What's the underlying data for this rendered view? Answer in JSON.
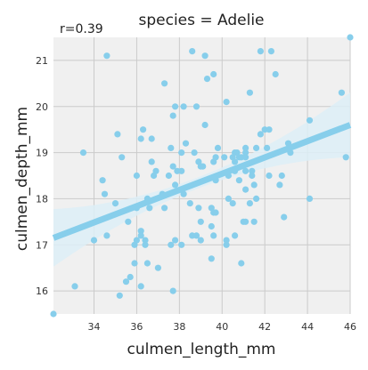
{
  "chart_data": {
    "type": "scatter",
    "title": "species = Adelie",
    "annotation": "r=0.39",
    "xlabel": "culmen_length_mm",
    "ylabel": "culmen_depth_mm",
    "xlim": [
      32.1,
      46.0
    ],
    "ylim": [
      15.5,
      21.5
    ],
    "xticks": [
      34,
      36,
      38,
      40,
      42,
      44,
      46
    ],
    "yticks": [
      16,
      17,
      18,
      19,
      20,
      21
    ],
    "grid": true,
    "colors": {
      "points": "#87CEEB",
      "regression": "#87CEEB",
      "band": "#DDEEF7",
      "background": "#F0F0F0",
      "grid": "#CBCBCB"
    },
    "regression": {
      "x": [
        32.1,
        46.0
      ],
      "y": [
        17.15,
        19.6
      ]
    },
    "points": [
      [
        32.1,
        15.5
      ],
      [
        33.1,
        16.1
      ],
      [
        33.5,
        19.0
      ],
      [
        34.0,
        17.1
      ],
      [
        34.4,
        18.4
      ],
      [
        34.5,
        18.1
      ],
      [
        34.6,
        17.2
      ],
      [
        34.6,
        21.1
      ],
      [
        35.0,
        17.9
      ],
      [
        35.1,
        19.4
      ],
      [
        35.2,
        15.9
      ],
      [
        35.3,
        18.9
      ],
      [
        35.5,
        16.2
      ],
      [
        35.6,
        17.5
      ],
      [
        35.7,
        16.3
      ],
      [
        35.9,
        16.6
      ],
      [
        35.9,
        17.0
      ],
      [
        36.0,
        17.1
      ],
      [
        36.0,
        17.8
      ],
      [
        36.0,
        18.5
      ],
      [
        36.2,
        16.1
      ],
      [
        36.2,
        17.3
      ],
      [
        36.2,
        17.2
      ],
      [
        36.2,
        19.3
      ],
      [
        36.3,
        19.5
      ],
      [
        36.4,
        17.1
      ],
      [
        36.4,
        17.0
      ],
      [
        36.5,
        16.6
      ],
      [
        36.5,
        18.0
      ],
      [
        36.6,
        17.8
      ],
      [
        36.7,
        18.8
      ],
      [
        36.7,
        19.3
      ],
      [
        36.8,
        18.5
      ],
      [
        36.9,
        18.6
      ],
      [
        37.0,
        16.5
      ],
      [
        37.2,
        18.1
      ],
      [
        37.3,
        17.8
      ],
      [
        37.3,
        20.5
      ],
      [
        37.5,
        18.5
      ],
      [
        37.6,
        17.0
      ],
      [
        37.6,
        19.1
      ],
      [
        37.7,
        16.0
      ],
      [
        37.7,
        18.7
      ],
      [
        37.7,
        19.8
      ],
      [
        37.8,
        17.1
      ],
      [
        37.8,
        18.3
      ],
      [
        37.8,
        20.0
      ],
      [
        37.9,
        18.6
      ],
      [
        38.1,
        17.0
      ],
      [
        38.1,
        18.6
      ],
      [
        38.1,
        19.0
      ],
      [
        38.2,
        18.1
      ],
      [
        38.2,
        20.0
      ],
      [
        38.3,
        19.2
      ],
      [
        38.5,
        17.9
      ],
      [
        38.6,
        17.2
      ],
      [
        38.6,
        21.2
      ],
      [
        38.7,
        19.0
      ],
      [
        38.8,
        17.2
      ],
      [
        38.8,
        20.0
      ],
      [
        38.9,
        17.8
      ],
      [
        38.9,
        18.8
      ],
      [
        39.0,
        17.1
      ],
      [
        39.0,
        17.5
      ],
      [
        39.0,
        18.7
      ],
      [
        39.1,
        18.7
      ],
      [
        39.2,
        19.6
      ],
      [
        39.2,
        21.1
      ],
      [
        39.3,
        20.6
      ],
      [
        39.5,
        16.7
      ],
      [
        39.5,
        17.4
      ],
      [
        39.5,
        17.8
      ],
      [
        39.6,
        17.2
      ],
      [
        39.6,
        17.7
      ],
      [
        39.6,
        18.8
      ],
      [
        39.6,
        20.7
      ],
      [
        39.7,
        17.7
      ],
      [
        39.7,
        18.4
      ],
      [
        39.7,
        18.9
      ],
      [
        39.8,
        19.1
      ],
      [
        40.1,
        18.9
      ],
      [
        40.2,
        17.0
      ],
      [
        40.2,
        17.1
      ],
      [
        40.2,
        20.1
      ],
      [
        40.3,
        18.0
      ],
      [
        40.3,
        18.5
      ],
      [
        40.5,
        17.9
      ],
      [
        40.5,
        18.9
      ],
      [
        40.6,
        17.2
      ],
      [
        40.6,
        18.6
      ],
      [
        40.6,
        18.8
      ],
      [
        40.6,
        19.0
      ],
      [
        40.7,
        19.0
      ],
      [
        40.8,
        18.4
      ],
      [
        40.8,
        18.9
      ],
      [
        40.9,
        16.6
      ],
      [
        40.9,
        18.9
      ],
      [
        41.0,
        17.5
      ],
      [
        41.1,
        17.5
      ],
      [
        41.1,
        18.2
      ],
      [
        41.1,
        18.6
      ],
      [
        41.1,
        18.9
      ],
      [
        41.1,
        19.0
      ],
      [
        41.1,
        19.1
      ],
      [
        41.3,
        17.9
      ],
      [
        41.3,
        20.3
      ],
      [
        41.4,
        18.6
      ],
      [
        41.4,
        18.5
      ],
      [
        41.5,
        17.5
      ],
      [
        41.5,
        18.3
      ],
      [
        41.6,
        18.0
      ],
      [
        41.6,
        19.1
      ],
      [
        41.8,
        19.4
      ],
      [
        41.8,
        21.2
      ],
      [
        42.0,
        19.5
      ],
      [
        42.1,
        19.1
      ],
      [
        42.2,
        18.5
      ],
      [
        42.2,
        19.5
      ],
      [
        42.3,
        21.2
      ],
      [
        42.5,
        20.7
      ],
      [
        42.7,
        18.3
      ],
      [
        42.8,
        18.5
      ],
      [
        42.9,
        17.6
      ],
      [
        43.1,
        19.2
      ],
      [
        43.2,
        19.0
      ],
      [
        44.1,
        18.0
      ],
      [
        44.1,
        19.7
      ],
      [
        45.6,
        20.3
      ],
      [
        45.8,
        18.9
      ],
      [
        46.0,
        21.5
      ]
    ]
  }
}
